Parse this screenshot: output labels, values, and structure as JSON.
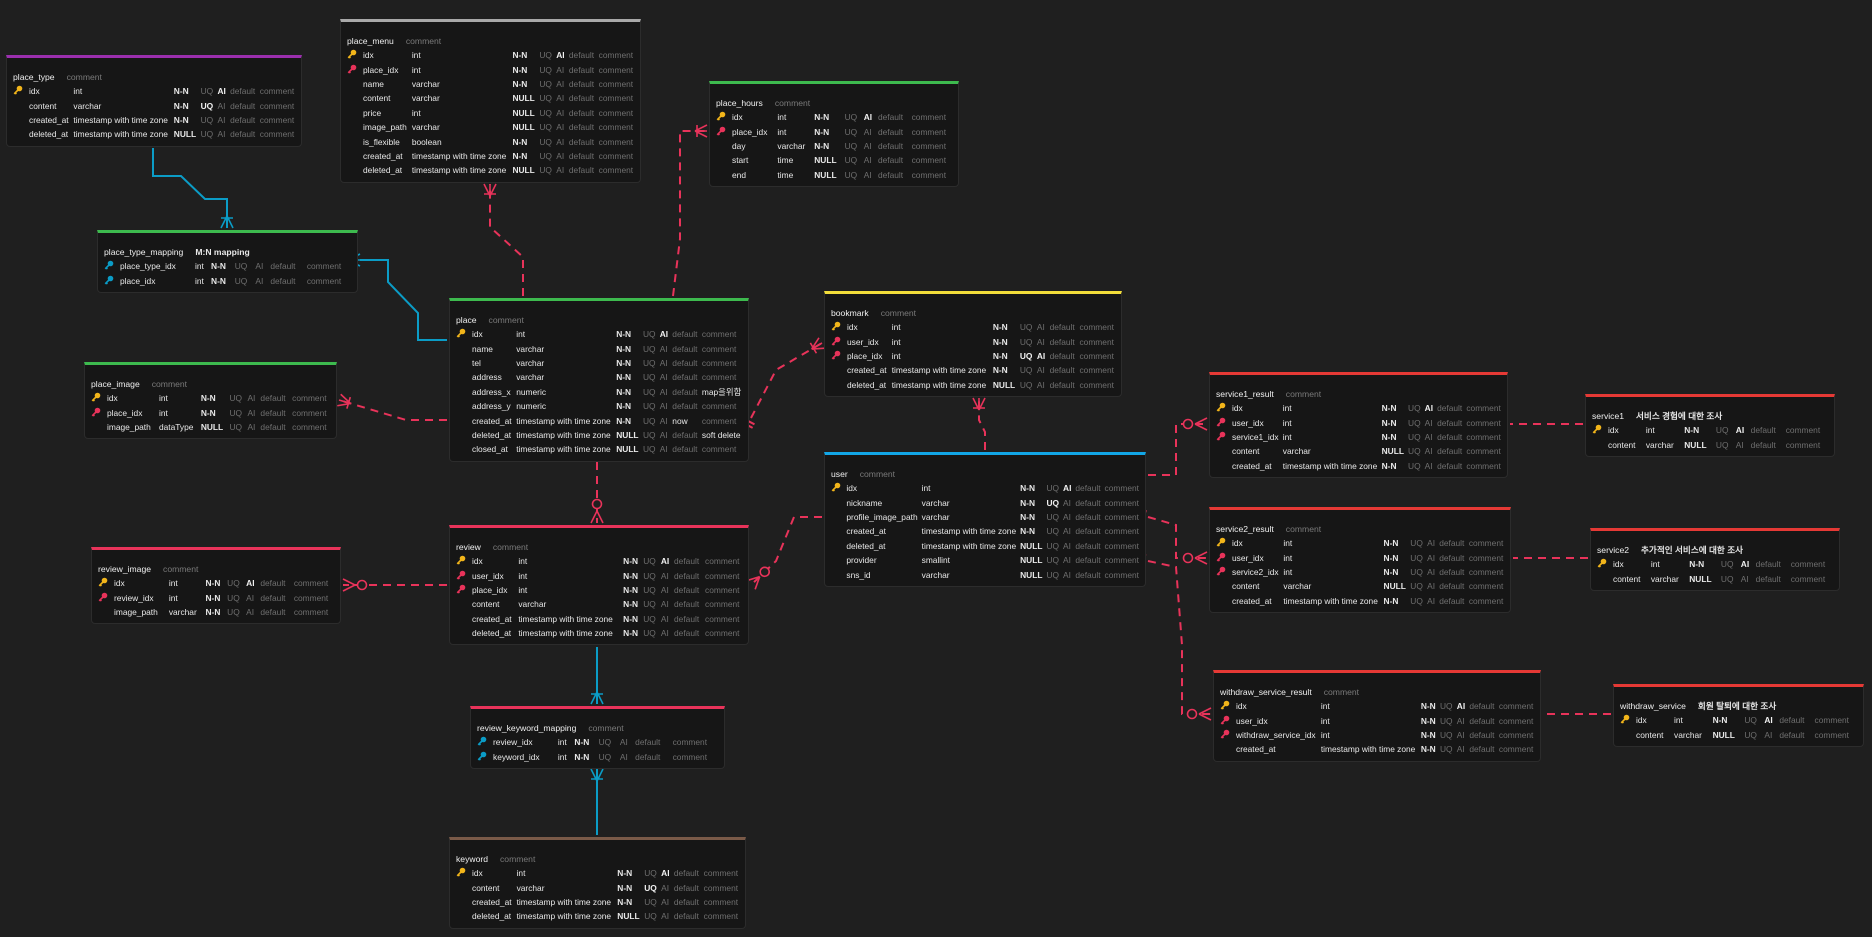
{
  "colors": {
    "fk_line": "#e8335a",
    "mn_line": "#0b9cc6",
    "pk_key": "#f2b51a",
    "fk_key": "#e8335a"
  },
  "tables": [
    {
      "id": "place_type",
      "name": "place_type",
      "comment": "comment",
      "color": "#9b2fae",
      "cols": [
        [
          "pk",
          "idx",
          "int",
          "N-N",
          0,
          1,
          "default",
          "comment"
        ],
        [
          "",
          "content",
          "varchar",
          "N-N",
          1,
          0,
          "default",
          "comment"
        ],
        [
          "",
          "created_at",
          "timestamp with time zone",
          "N-N",
          0,
          0,
          "default",
          "comment"
        ],
        [
          "",
          "deleted_at",
          "timestamp with time zone",
          "NULL",
          0,
          0,
          "default",
          "comment"
        ]
      ]
    },
    {
      "id": "place_menu",
      "name": "place_menu",
      "comment": "comment",
      "color": "#a8a8a8",
      "cols": [
        [
          "pk",
          "idx",
          "int",
          "N-N",
          0,
          1,
          "default",
          "comment"
        ],
        [
          "fk",
          "place_idx",
          "int",
          "N-N",
          0,
          0,
          "default",
          "comment"
        ],
        [
          "",
          "name",
          "varchar",
          "N-N",
          0,
          0,
          "default",
          "comment"
        ],
        [
          "",
          "content",
          "varchar",
          "NULL",
          0,
          0,
          "default",
          "comment"
        ],
        [
          "",
          "price",
          "int",
          "NULL",
          0,
          0,
          "default",
          "comment"
        ],
        [
          "",
          "image_path",
          "varchar",
          "NULL",
          0,
          0,
          "default",
          "comment"
        ],
        [
          "",
          "is_flexible",
          "boolean",
          "N-N",
          0,
          0,
          "default",
          "comment"
        ],
        [
          "",
          "created_at",
          "timestamp with time zone",
          "N-N",
          0,
          0,
          "default",
          "comment"
        ],
        [
          "",
          "deleted_at",
          "timestamp with time zone",
          "NULL",
          0,
          0,
          "default",
          "comment"
        ]
      ]
    },
    {
      "id": "place_hours",
      "name": "place_hours",
      "comment": "comment",
      "color": "#3dba4e",
      "cols": [
        [
          "pk",
          "idx",
          "int",
          "N-N",
          0,
          1,
          "default",
          "comment"
        ],
        [
          "fk",
          "place_idx",
          "int",
          "N-N",
          0,
          0,
          "default",
          "comment"
        ],
        [
          "",
          "day",
          "varchar",
          "N-N",
          0,
          0,
          "default",
          "comment"
        ],
        [
          "",
          "start",
          "time",
          "NULL",
          0,
          0,
          "default",
          "comment"
        ],
        [
          "",
          "end",
          "time",
          "NULL",
          0,
          0,
          "default",
          "comment"
        ]
      ]
    },
    {
      "id": "place_type_mapping",
      "name": "place_type_mapping",
      "comment": "M:N mapping",
      "comment_on": 1,
      "color": "#3dba4e",
      "cols": [
        [
          "mn",
          "place_type_idx",
          "int",
          "N-N",
          0,
          0,
          "default",
          "comment"
        ],
        [
          "mn",
          "place_idx",
          "int",
          "N-N",
          0,
          0,
          "default",
          "comment"
        ]
      ]
    },
    {
      "id": "place",
      "name": "place",
      "comment": "comment",
      "color": "#3dba4e",
      "cols": [
        [
          "pk",
          "idx",
          "int",
          "N-N",
          0,
          1,
          "default",
          "comment"
        ],
        [
          "",
          "name",
          "varchar",
          "N-N",
          0,
          0,
          "default",
          "comment"
        ],
        [
          "",
          "tel",
          "varchar",
          "N-N",
          0,
          0,
          "default",
          "comment"
        ],
        [
          "",
          "address",
          "varchar",
          "N-N",
          0,
          0,
          "default",
          "comment"
        ],
        [
          "",
          "address_x",
          "numeric",
          "N-N",
          0,
          0,
          "default",
          "map을위함"
        ],
        [
          "",
          "address_y",
          "numeric",
          "N-N",
          0,
          0,
          "default",
          "comment"
        ],
        [
          "",
          "created_at",
          "timestamp with time zone",
          "N-N",
          0,
          0,
          "now",
          "comment"
        ],
        [
          "",
          "deleted_at",
          "timestamp with time zone",
          "NULL",
          0,
          0,
          "default",
          "soft delete"
        ],
        [
          "",
          "closed_at",
          "timestamp with time zone",
          "NULL",
          0,
          0,
          "default",
          "comment"
        ]
      ]
    },
    {
      "id": "place_image",
      "name": "place_image",
      "comment": "comment",
      "color": "#3dba4e",
      "cols": [
        [
          "pk",
          "idx",
          "int",
          "N-N",
          0,
          0,
          "default",
          "comment"
        ],
        [
          "fk",
          "place_idx",
          "int",
          "N-N",
          0,
          0,
          "default",
          "comment"
        ],
        [
          "",
          "image_path",
          "dataType",
          "NULL",
          0,
          0,
          "default",
          "comment"
        ]
      ]
    },
    {
      "id": "bookmark",
      "name": "bookmark",
      "comment": "comment",
      "color": "#f2dd3a",
      "cols": [
        [
          "pk",
          "idx",
          "int",
          "N-N",
          0,
          0,
          "default",
          "comment"
        ],
        [
          "fk",
          "user_idx",
          "int",
          "N-N",
          0,
          0,
          "default",
          "comment"
        ],
        [
          "fk",
          "place_idx",
          "int",
          "N-N",
          1,
          1,
          "default",
          "comment"
        ],
        [
          "",
          "created_at",
          "timestamp with time zone",
          "N-N",
          0,
          0,
          "default",
          "comment"
        ],
        [
          "",
          "deleted_at",
          "timestamp with time zone",
          "NULL",
          0,
          0,
          "default",
          "comment"
        ]
      ]
    },
    {
      "id": "user",
      "name": "user",
      "comment": "comment",
      "color": "#12a6e6",
      "cols": [
        [
          "pk",
          "idx",
          "int",
          "N-N",
          0,
          1,
          "default",
          "comment"
        ],
        [
          "",
          "nickname",
          "varchar",
          "N-N",
          1,
          0,
          "default",
          "comment"
        ],
        [
          "",
          "profile_image_path",
          "varchar",
          "N-N",
          0,
          0,
          "default",
          "comment"
        ],
        [
          "",
          "created_at",
          "timestamp with time zone",
          "N-N",
          0,
          0,
          "default",
          "comment"
        ],
        [
          "",
          "deleted_at",
          "timestamp with time zone",
          "NULL",
          0,
          0,
          "default",
          "comment"
        ],
        [
          "",
          "provider",
          "smallint",
          "NULL",
          0,
          0,
          "default",
          "comment"
        ],
        [
          "",
          "sns_id",
          "varchar",
          "NULL",
          0,
          0,
          "default",
          "comment"
        ]
      ]
    },
    {
      "id": "service1_result",
      "name": "service1_result",
      "comment": "comment",
      "color": "#e53935",
      "cols": [
        [
          "pk",
          "idx",
          "int",
          "N-N",
          0,
          1,
          "default",
          "comment"
        ],
        [
          "fk",
          "user_idx",
          "int",
          "N-N",
          0,
          0,
          "default",
          "comment"
        ],
        [
          "fk",
          "service1_idx",
          "int",
          "N-N",
          0,
          0,
          "default",
          "comment"
        ],
        [
          "",
          "content",
          "varchar",
          "NULL",
          0,
          0,
          "default",
          "comment"
        ],
        [
          "",
          "created_at",
          "timestamp with time zone",
          "N-N",
          0,
          0,
          "default",
          "comment"
        ]
      ]
    },
    {
      "id": "service2_result",
      "name": "service2_result",
      "comment": "comment",
      "color": "#e53935",
      "cols": [
        [
          "pk",
          "idx",
          "int",
          "N-N",
          0,
          0,
          "default",
          "comment"
        ],
        [
          "fk",
          "user_idx",
          "int",
          "N-N",
          0,
          0,
          "default",
          "comment"
        ],
        [
          "fk",
          "service2_idx",
          "int",
          "N-N",
          0,
          0,
          "default",
          "comment"
        ],
        [
          "",
          "content",
          "varchar",
          "NULL",
          0,
          0,
          "default",
          "comment"
        ],
        [
          "",
          "created_at",
          "timestamp with time zone",
          "N-N",
          0,
          0,
          "default",
          "comment"
        ]
      ]
    },
    {
      "id": "withdraw_service_result",
      "name": "withdraw_service_result",
      "comment": "comment",
      "color": "#e53935",
      "cols": [
        [
          "pk",
          "idx",
          "int",
          "N-N",
          0,
          1,
          "default",
          "comment"
        ],
        [
          "fk",
          "user_idx",
          "int",
          "N-N",
          0,
          0,
          "default",
          "comment"
        ],
        [
          "fk",
          "withdraw_service_idx",
          "int",
          "N-N",
          0,
          0,
          "default",
          "comment"
        ],
        [
          "",
          "created_at",
          "timestamp with time zone",
          "N-N",
          0,
          0,
          "default",
          "comment"
        ]
      ]
    },
    {
      "id": "service1",
      "name": "service1",
      "comment": "서비스 경험에 대한 조사",
      "comment_on": 1,
      "color": "#e53935",
      "cols": [
        [
          "pk",
          "idx",
          "int",
          "N-N",
          0,
          1,
          "default",
          "comment"
        ],
        [
          "",
          "content",
          "varchar",
          "NULL",
          0,
          0,
          "default",
          "comment"
        ]
      ]
    },
    {
      "id": "service2",
      "name": "service2",
      "comment": "추가적인 서비스에 대한 조사",
      "comment_on": 1,
      "color": "#e53935",
      "cols": [
        [
          "pk",
          "idx",
          "int",
          "N-N",
          0,
          1,
          "default",
          "comment"
        ],
        [
          "",
          "content",
          "varchar",
          "NULL",
          0,
          0,
          "default",
          "comment"
        ]
      ]
    },
    {
      "id": "withdraw_service",
      "name": "withdraw_service",
      "comment": "회원 탈퇴에 대한 조사",
      "comment_on": 1,
      "color": "#e53935",
      "cols": [
        [
          "pk",
          "idx",
          "int",
          "N-N",
          0,
          1,
          "default",
          "comment"
        ],
        [
          "",
          "content",
          "varchar",
          "NULL",
          0,
          0,
          "default",
          "comment"
        ]
      ]
    },
    {
      "id": "review_image",
      "name": "review_image",
      "comment": "comment",
      "color": "#e8335a",
      "cols": [
        [
          "pk",
          "idx",
          "int",
          "N-N",
          0,
          1,
          "default",
          "comment"
        ],
        [
          "fk",
          "review_idx",
          "int",
          "N-N",
          0,
          0,
          "default",
          "comment"
        ],
        [
          "",
          "image_path",
          "varchar",
          "N-N",
          0,
          0,
          "default",
          "comment"
        ]
      ]
    },
    {
      "id": "review",
      "name": "review",
      "comment": "comment",
      "color": "#e8335a",
      "cols": [
        [
          "pk",
          "idx",
          "int",
          "N-N",
          0,
          1,
          "default",
          "comment"
        ],
        [
          "fk",
          "user_idx",
          "int",
          "N-N",
          0,
          0,
          "default",
          "comment"
        ],
        [
          "fk",
          "place_idx",
          "int",
          "N-N",
          0,
          0,
          "default",
          "comment"
        ],
        [
          "",
          "content",
          "varchar",
          "N-N",
          0,
          0,
          "default",
          "comment"
        ],
        [
          "",
          "created_at",
          "timestamp with time zone",
          "N-N",
          0,
          0,
          "default",
          "comment"
        ],
        [
          "",
          "deleted_at",
          "timestamp with time zone",
          "N-N",
          0,
          0,
          "default",
          "comment"
        ]
      ]
    },
    {
      "id": "review_keyword_mapping",
      "name": "review_keyword_mapping",
      "comment": "comment",
      "color": "#e8335a",
      "cols": [
        [
          "mn",
          "review_idx",
          "int",
          "N-N",
          0,
          0,
          "default",
          "comment"
        ],
        [
          "mn",
          "keyword_idx",
          "int",
          "N-N",
          0,
          0,
          "default",
          "comment"
        ]
      ]
    },
    {
      "id": "keyword",
      "name": "keyword",
      "comment": "comment",
      "color": "#7a5a48",
      "cols": [
        [
          "pk",
          "idx",
          "int",
          "N-N",
          0,
          1,
          "default",
          "comment"
        ],
        [
          "",
          "content",
          "varchar",
          "N-N",
          1,
          0,
          "default",
          "comment"
        ],
        [
          "",
          "created_at",
          "timestamp with time zone",
          "N-N",
          0,
          0,
          "default",
          "comment"
        ],
        [
          "",
          "deleted_at",
          "timestamp with time zone",
          "NULL",
          0,
          0,
          "default",
          "comment"
        ]
      ]
    }
  ],
  "labels": {
    "uq": "UQ",
    "ai": "AI"
  }
}
